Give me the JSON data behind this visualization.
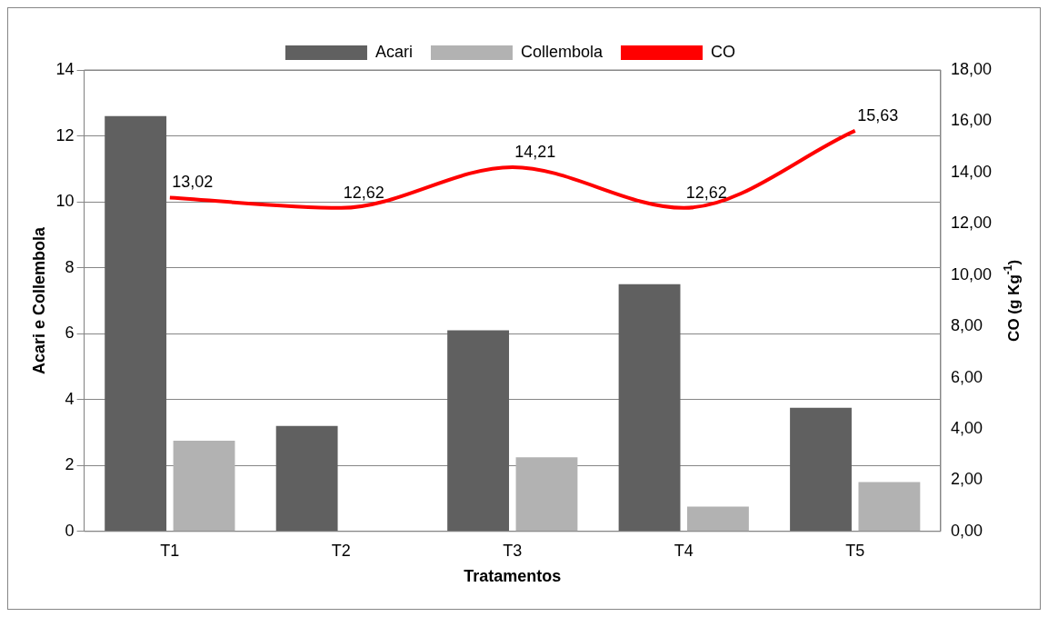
{
  "chart_data": {
    "type": "bar",
    "xlabel": "Tratamentos",
    "ylabel": "Acari e Collembola",
    "y2label": "CO (g Kg$^{-1}$)",
    "categories": [
      "T1",
      "T2",
      "T3",
      "T4",
      "T5"
    ],
    "series": [
      {
        "name": "Acari",
        "color": "#606060",
        "values": [
          12.6,
          3.2,
          6.1,
          7.5,
          3.75
        ]
      },
      {
        "name": "Collembola",
        "color": "#b2b2b2",
        "values": [
          2.75,
          0,
          2.25,
          0.75,
          1.5
        ]
      },
      {
        "name": "CO",
        "type": "line",
        "axis": "y2",
        "color": "#ff0000",
        "values": [
          13.02,
          12.62,
          14.21,
          12.62,
          15.63
        ],
        "value_labels": [
          "13,02",
          "12,62",
          "14,21",
          "12,62",
          "15,63"
        ]
      }
    ],
    "ylim": [
      0,
      14
    ],
    "yticks": [
      0,
      2,
      4,
      6,
      8,
      10,
      12,
      14
    ],
    "y2lim": [
      0,
      18
    ],
    "y2ticks": [
      {
        "value": 0,
        "label": "0,00"
      },
      {
        "value": 2,
        "label": "2,00"
      },
      {
        "value": 4,
        "label": "4,00"
      },
      {
        "value": 6,
        "label": "6,00"
      },
      {
        "value": 8,
        "label": "8,00"
      },
      {
        "value": 10,
        "label": "10,00"
      },
      {
        "value": 12,
        "label": "12,00"
      },
      {
        "value": 14,
        "label": "14,00"
      },
      {
        "value": 16,
        "label": "16,00"
      },
      {
        "value": 18,
        "label": "18,00"
      }
    ],
    "grid": "y",
    "legend": "top"
  }
}
